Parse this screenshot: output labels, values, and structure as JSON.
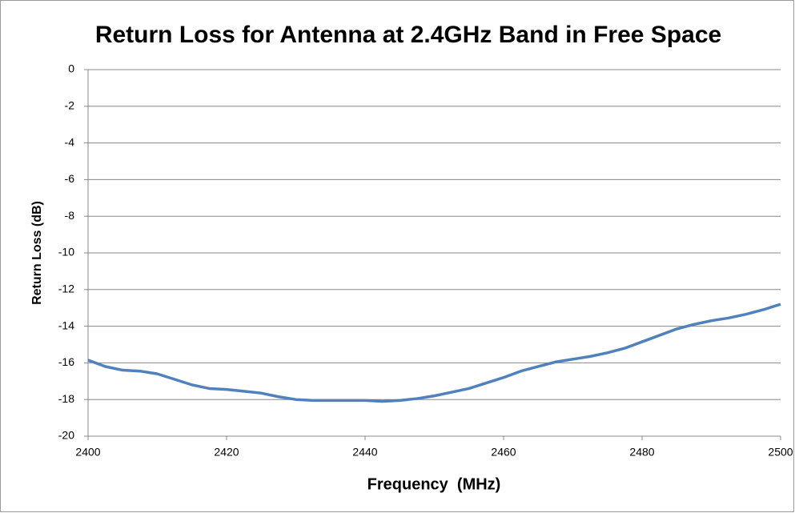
{
  "chart_data": {
    "type": "line",
    "title": "Return Loss for Antenna at 2.4GHz Band in Free Space",
    "x_label": "Frequency  (MHz)",
    "y_label": "Return Loss (dB)",
    "x": [
      2400,
      2402.5,
      2405,
      2407.5,
      2410,
      2412.5,
      2415,
      2417.5,
      2420,
      2422.5,
      2425,
      2427.5,
      2430,
      2432.5,
      2435,
      2437.5,
      2440,
      2442.5,
      2445,
      2447.5,
      2450,
      2452.5,
      2455,
      2457.5,
      2460,
      2462.5,
      2465,
      2467.5,
      2470,
      2472.5,
      2475,
      2477.5,
      2480,
      2482.5,
      2485,
      2487.5,
      2490,
      2492.5,
      2495,
      2497.5,
      2500
    ],
    "series": [
      {
        "color": "#4f81bd",
        "values": [
          -15.85,
          -16.2,
          -16.4,
          -16.45,
          -16.6,
          -16.9,
          -17.2,
          -17.4,
          -17.45,
          -17.55,
          -17.65,
          -17.85,
          -18.0,
          -18.05,
          -18.05,
          -18.05,
          -18.05,
          -18.1,
          -18.05,
          -17.95,
          -17.8,
          -17.6,
          -17.4,
          -17.1,
          -16.8,
          -16.45,
          -16.2,
          -15.95,
          -15.8,
          -15.65,
          -15.45,
          -15.2,
          -14.85,
          -14.5,
          -14.15,
          -13.9,
          -13.7,
          -13.55,
          -13.35,
          -13.1,
          -12.8
        ]
      }
    ],
    "xlim": [
      2400,
      2500
    ],
    "xticks": [
      2400,
      2420,
      2440,
      2460,
      2480,
      2500
    ],
    "ylim": [
      -20,
      0
    ],
    "yticks": [
      -20,
      -18,
      -16,
      -14,
      -12,
      -10,
      -8,
      -6,
      -4,
      -2,
      0
    ],
    "grid": true
  }
}
